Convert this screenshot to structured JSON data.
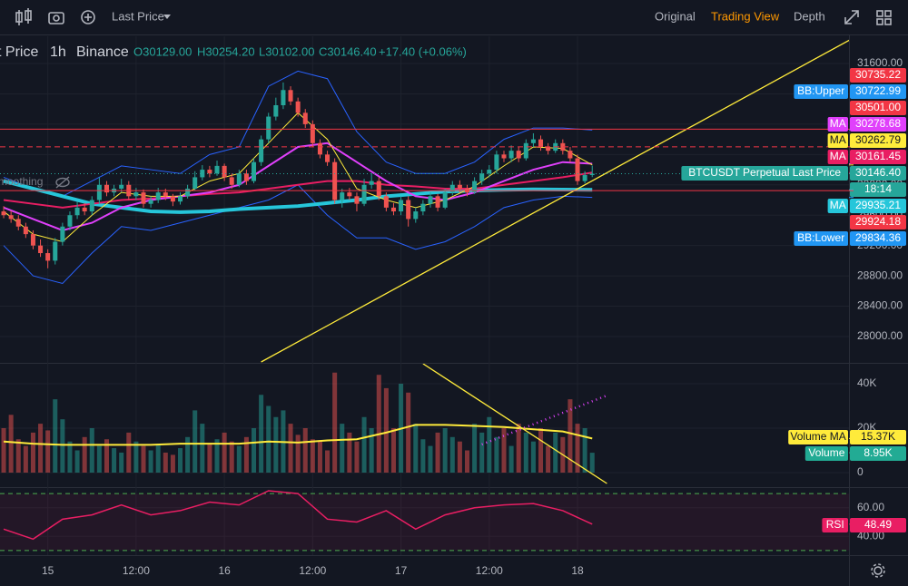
{
  "toolbar": {
    "price_source": "Last Price",
    "tabs": [
      "Original",
      "Trading View",
      "Depth"
    ],
    "active_tab": 1
  },
  "chart_data": {
    "type": "candlestick",
    "legend": {
      "symbol": "t Price",
      "interval": "1h",
      "exchange": "Binance",
      "open": "O30129.00",
      "high": "H30254.20",
      "low": "L30102.00",
      "close": "C30146.40",
      "change": "+17.40 (+0.06%)"
    },
    "indicator_label": "moothing",
    "xlim": [
      -0.5,
      114.9
    ],
    "xticks": [
      {
        "value": 6,
        "label": "15"
      },
      {
        "value": 18,
        "label": "12:00"
      },
      {
        "value": 30,
        "label": "16"
      },
      {
        "value": 42,
        "label": "12:00"
      },
      {
        "value": 54,
        "label": "17"
      },
      {
        "value": 66,
        "label": "12:00"
      },
      {
        "value": 78,
        "label": "18"
      }
    ],
    "up_color": "#26a69a",
    "down_color": "#ef5350",
    "candles": [
      [
        29650,
        29720,
        29560,
        29600
      ],
      [
        29600,
        29660,
        29500,
        29550
      ],
      [
        29550,
        29600,
        29400,
        29450
      ],
      [
        29450,
        29500,
        29300,
        29350
      ],
      [
        29350,
        29400,
        29150,
        29200
      ],
      [
        29200,
        29280,
        29050,
        29100
      ],
      [
        29100,
        29150,
        28900,
        29000
      ],
      [
        29000,
        29300,
        28950,
        29250
      ],
      [
        29250,
        29500,
        29200,
        29450
      ],
      [
        29450,
        29650,
        29400,
        29600
      ],
      [
        29600,
        29780,
        29550,
        29700
      ],
      [
        29700,
        29760,
        29600,
        29650
      ],
      [
        29650,
        29850,
        29600,
        29800
      ],
      [
        29800,
        30100,
        29750,
        30000
      ],
      [
        30000,
        30050,
        29850,
        29900
      ],
      [
        29900,
        30000,
        29850,
        29950
      ],
      [
        29950,
        30080,
        29900,
        30000
      ],
      [
        30000,
        30050,
        29800,
        29850
      ],
      [
        29850,
        29960,
        29800,
        29900
      ],
      [
        29900,
        29940,
        29700,
        29750
      ],
      [
        29750,
        29850,
        29700,
        29800
      ],
      [
        29800,
        29960,
        29760,
        29900
      ],
      [
        29900,
        29950,
        29800,
        29850
      ],
      [
        29850,
        29880,
        29720,
        29780
      ],
      [
        29780,
        29900,
        29740,
        29850
      ],
      [
        29850,
        30000,
        29820,
        29950
      ],
      [
        29950,
        30180,
        29920,
        30100
      ],
      [
        30100,
        30260,
        30060,
        30200
      ],
      [
        30200,
        30250,
        30100,
        30150
      ],
      [
        30150,
        30320,
        30120,
        30250
      ],
      [
        30250,
        30280,
        30050,
        30100
      ],
      [
        30100,
        30150,
        29950,
        30000
      ],
      [
        30000,
        30200,
        29970,
        30150
      ],
      [
        30150,
        30200,
        30000,
        30050
      ],
      [
        30050,
        30350,
        30020,
        30300
      ],
      [
        30300,
        30650,
        30250,
        30600
      ],
      [
        30600,
        30950,
        30550,
        30900
      ],
      [
        30900,
        31150,
        30850,
        31050
      ],
      [
        31050,
        31350,
        31000,
        31250
      ],
      [
        31250,
        31300,
        31050,
        31100
      ],
      [
        31100,
        31150,
        30900,
        30950
      ],
      [
        30950,
        31000,
        30750,
        30800
      ],
      [
        30800,
        30850,
        30500,
        30550
      ],
      [
        30550,
        30600,
        30350,
        30400
      ],
      [
        30400,
        30450,
        30250,
        30300
      ],
      [
        30300,
        30350,
        29750,
        29800
      ],
      [
        29800,
        29950,
        29700,
        29900
      ],
      [
        29900,
        29960,
        29800,
        29850
      ],
      [
        29850,
        29900,
        29650,
        29750
      ],
      [
        29750,
        30080,
        29720,
        30000
      ],
      [
        30000,
        30150,
        29950,
        30050
      ],
      [
        30050,
        30100,
        29800,
        29850
      ],
      [
        29850,
        29900,
        29650,
        29700
      ],
      [
        29700,
        29760,
        29600,
        29650
      ],
      [
        29650,
        29850,
        29600,
        29800
      ],
      [
        29800,
        29850,
        29450,
        29550
      ],
      [
        29550,
        29700,
        29500,
        29650
      ],
      [
        29650,
        29800,
        29600,
        29750
      ],
      [
        29750,
        29900,
        29700,
        29850
      ],
      [
        29850,
        29880,
        29650,
        29700
      ],
      [
        29700,
        29950,
        29680,
        29900
      ],
      [
        29900,
        30050,
        29860,
        30000
      ],
      [
        30000,
        30060,
        29900,
        29950
      ],
      [
        29950,
        30000,
        29850,
        29900
      ],
      [
        29900,
        30100,
        29880,
        30050
      ],
      [
        30050,
        30200,
        30000,
        30150
      ],
      [
        30150,
        30260,
        30100,
        30200
      ],
      [
        30200,
        30450,
        30150,
        30400
      ],
      [
        30400,
        30450,
        30300,
        30350
      ],
      [
        30350,
        30520,
        30300,
        30450
      ],
      [
        30450,
        30500,
        30300,
        30350
      ],
      [
        30350,
        30600,
        30320,
        30550
      ],
      [
        30550,
        30680,
        30500,
        30600
      ],
      [
        30600,
        30650,
        30450,
        30500
      ],
      [
        30500,
        30550,
        30400,
        30450
      ],
      [
        30450,
        30600,
        30420,
        30550
      ],
      [
        30550,
        30600,
        30400,
        30450
      ],
      [
        30450,
        30500,
        30300,
        30350
      ],
      [
        30350,
        30400,
        30000,
        30050
      ],
      [
        30050,
        30180,
        30020,
        30129
      ],
      [
        30129,
        30254.2,
        30102,
        30146.4
      ]
    ],
    "ylim": [
      27653,
      31959
    ],
    "yticks": [
      {
        "value": 28000,
        "label": "28000.00"
      },
      {
        "value": 28400,
        "label": "28400.00"
      },
      {
        "value": 28800,
        "label": "28800.00"
      },
      {
        "value": 29200,
        "label": "29200.00"
      },
      {
        "value": 29600,
        "label": "29600.00"
      },
      {
        "value": 30000,
        "label": "30000.00"
      },
      {
        "value": 30400,
        "label": "30400.00"
      },
      {
        "value": 30800,
        "label": "30800.00"
      },
      {
        "value": 31200,
        "label": "31200.00"
      },
      {
        "value": 31600,
        "label": "31600.00"
      }
    ],
    "indicator_x": [
      0,
      4,
      8,
      12,
      16,
      20,
      24,
      28,
      32,
      36,
      40,
      44,
      48,
      52,
      56,
      60,
      64,
      68,
      72,
      76,
      80
    ],
    "lines": [
      {
        "color": "#2962ff",
        "width": 1,
        "values": [
          30100,
          29950,
          29850,
          30050,
          30250,
          30200,
          30150,
          30400,
          30500,
          31300,
          31500,
          31400,
          30700,
          30300,
          30150,
          30150,
          30300,
          30600,
          30750,
          30750,
          30722.99
        ]
      },
      {
        "color": "#2962ff",
        "width": 1,
        "values": [
          29200,
          28800,
          28700,
          29100,
          29450,
          29400,
          29500,
          29600,
          29700,
          29800,
          30000,
          29600,
          29300,
          29300,
          29150,
          29250,
          29450,
          29700,
          29800,
          29850,
          29834.36
        ]
      },
      {
        "color": "#26c6da",
        "width": 4,
        "values": [
          30050,
          29950,
          29850,
          29750,
          29700,
          29650,
          29640,
          29650,
          29680,
          29700,
          29720,
          29760,
          29800,
          29850,
          29880,
          29910,
          29925,
          29935,
          29940,
          29938,
          29935.21
        ]
      },
      {
        "color": "#e91e63",
        "width": 2,
        "values": [
          29800,
          29750,
          29700,
          29750,
          29800,
          29820,
          29850,
          29880,
          29900,
          29950,
          30000,
          30050,
          30050,
          30000,
          29980,
          29950,
          29950,
          30000,
          30050,
          30100,
          30161.45
        ]
      },
      {
        "color": "#e040fb",
        "width": 2,
        "values": [
          29700,
          29550,
          29400,
          29500,
          29700,
          29800,
          29850,
          29900,
          30000,
          30250,
          30500,
          30550,
          30300,
          30050,
          29850,
          29800,
          29900,
          30050,
          30200,
          30300,
          30278.68
        ]
      },
      {
        "color": "#ffeb3b",
        "width": 1,
        "values": [
          29650,
          29350,
          29250,
          29600,
          29900,
          29850,
          29850,
          30050,
          30150,
          30550,
          30950,
          30600,
          29950,
          29800,
          29700,
          29800,
          29980,
          30250,
          30500,
          30480,
          30262.79
        ]
      }
    ],
    "trendlines": [
      {
        "x": [
          35,
          115
        ],
        "y": [
          27665,
          31911
        ],
        "color": "#ffeb3b"
      }
    ],
    "tags": [
      {
        "value": 30735.22,
        "label": "30735.22",
        "color": "#f23645",
        "line": "solid"
      },
      {
        "name": "BB:Upper",
        "value": 30722.99,
        "label": "30722.99",
        "color": "#2196f3"
      },
      {
        "value": 30501,
        "label": "30501.00",
        "color": "#f23645",
        "line": "dashed"
      },
      {
        "name": "MA",
        "value": 30278.68,
        "label": "30278.68",
        "color": "#e040fb"
      },
      {
        "name": "MA",
        "value": 30262.79,
        "label": "30262.79",
        "color": "#ffeb3b",
        "text_color": "#131722"
      },
      {
        "name": "MA",
        "value": 30161.45,
        "label": "30161.45",
        "color": "#e91e63"
      },
      {
        "name": "BTCUSDT Perpetual Last Price",
        "value": 30146.4,
        "label": "30146.40",
        "color": "#26a69a",
        "line": "dotted"
      },
      {
        "label": "18:14",
        "color": "#26a69a"
      },
      {
        "name": "MA",
        "value": 29935.21,
        "label": "29935.21",
        "color": "#26c6da"
      },
      {
        "value": 29924.18,
        "label": "29924.18",
        "color": "#f23645",
        "line": "solid"
      },
      {
        "name": "BB:Lower",
        "value": 29834.36,
        "label": "29834.36",
        "color": "#2196f3"
      }
    ],
    "volume": {
      "ylim": [
        -5714,
        49390
      ],
      "yticks": [
        0,
        {
          "value": 20000,
          "label": "20K"
        },
        {
          "value": 40000,
          "label": "40K"
        }
      ],
      "values": [
        20000,
        26000,
        15000,
        12000,
        18000,
        22000,
        19000,
        33000,
        24000,
        14000,
        10000,
        16000,
        20000,
        12000,
        15000,
        11000,
        9000,
        18000,
        14000,
        12000,
        10000,
        13000,
        9000,
        8000,
        11000,
        16000,
        28000,
        22000,
        13000,
        15000,
        18000,
        14000,
        12000,
        16000,
        20000,
        35000,
        30000,
        25000,
        28000,
        22000,
        17000,
        20000,
        15000,
        14000,
        10000,
        45000,
        22000,
        18000,
        14000,
        25000,
        20000,
        44000,
        38000,
        20000,
        40000,
        36000,
        22000,
        15000,
        12000,
        18000,
        20000,
        16000,
        14000,
        10000,
        22000,
        18000,
        25000,
        16000,
        20000,
        12000,
        22000,
        18000,
        14000,
        20000,
        12000,
        18000,
        16000,
        33000,
        22000,
        20000,
        8950
      ],
      "ma": {
        "color": "#ffeb3b",
        "values": [
          14000,
          13000,
          12500,
          12500,
          12500,
          12500,
          13000,
          13000,
          13000,
          14000,
          13500,
          14500,
          15000,
          18000,
          21500,
          21500,
          21000,
          20500,
          19500,
          18500,
          15370
        ]
      },
      "tags": [
        {
          "name": "Volume MA",
          "value": 15370,
          "label": "15.37K",
          "color": "#ffeb3b",
          "text_color": "#131722"
        },
        {
          "name": "Volume",
          "value": 8950,
          "label": "8.95K",
          "color": "#22ab94"
        }
      ],
      "trendlines": [
        {
          "x": [
            57,
            82
          ],
          "y": [
            49000,
            -4900
          ],
          "color": "#ffeb3b"
        },
        {
          "x": [
            65,
            82
          ],
          "y": [
            12700,
            34700
          ],
          "color": "#e040fb",
          "dotted": true
        }
      ]
    },
    "rsi": {
      "ylim": [
        26.7,
        73.9
      ],
      "yticks": [
        {
          "value": 40,
          "label": "40.00"
        },
        {
          "value": 60,
          "label": "60.00"
        }
      ],
      "bands": [
        30,
        70
      ],
      "color": "#e91e63",
      "values": [
        45,
        38,
        52,
        55,
        62,
        55,
        58,
        64,
        62,
        72,
        70,
        52,
        50,
        58,
        45,
        55,
        60,
        62,
        63,
        58,
        48.49
      ],
      "tags": [
        {
          "name": "RSI",
          "value": 48.49,
          "label": "48.49",
          "color": "#e91e63"
        }
      ]
    }
  }
}
